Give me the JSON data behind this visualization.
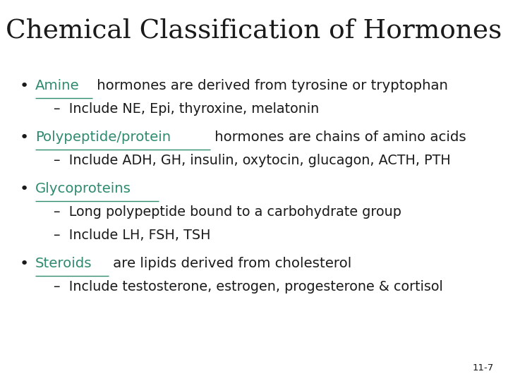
{
  "title": "Chemical Classification of Hormones",
  "title_fontsize": 27,
  "background_color": "#ffffff",
  "teal_color": "#2e8b6e",
  "dark_color": "#1a1a1a",
  "slide_number": "11-7",
  "body_fontsize": 14.2,
  "sub_fontsize": 13.8,
  "items": [
    {
      "link_text": "Amine",
      "main_text": " hormones are derived from tyrosine or tryptophan",
      "subs": [
        "–  Include NE, Epi, thyroxine, melatonin"
      ]
    },
    {
      "link_text": "Polypeptide/protein",
      "main_text": " hormones are chains of amino acids",
      "subs": [
        "–  Include ADH, GH, insulin, oxytocin, glucagon, ACTH, PTH"
      ]
    },
    {
      "link_text": "Glycoproteins",
      "main_text": "",
      "subs": [
        "–  Long polypeptide bound to a carbohydrate group",
        "–  Include LH, FSH, TSH"
      ]
    },
    {
      "link_text": "Steroids",
      "main_text": " are lipids derived from cholesterol",
      "subs": [
        "–  Include testosterone, estrogen, progesterone & cortisol"
      ]
    }
  ]
}
